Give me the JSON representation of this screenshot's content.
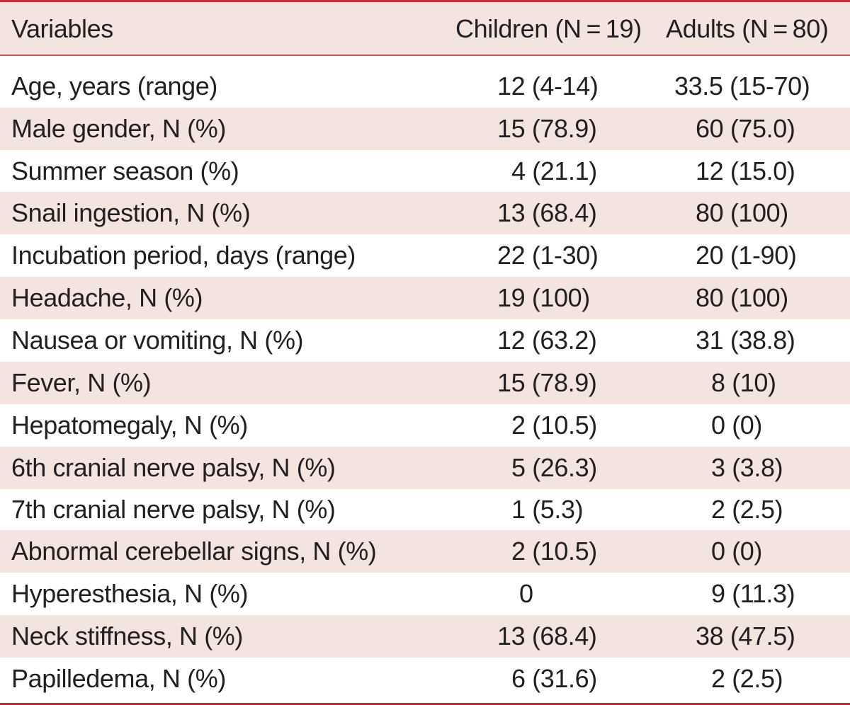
{
  "table": {
    "headers": {
      "variables": "Variables",
      "children": "Children (N = 19)",
      "adults": "Adults (N = 80)"
    },
    "rows": [
      {
        "variable": "Age, years (range)",
        "children": "12 (4-14)",
        "adults": "33.5 (15-70)"
      },
      {
        "variable": "Male gender, N (%)",
        "children": "15 (78.9)",
        "adults": "60 (75.0)"
      },
      {
        "variable": "Summer season (%)",
        "children": "4 (21.1)",
        "adults": "12 (15.0)"
      },
      {
        "variable": "Snail ingestion, N (%)",
        "children": "13 (68.4)",
        "adults": "80 (100)"
      },
      {
        "variable": "Incubation period, days (range)",
        "children": "22 (1-30)",
        "adults": "20 (1-90)"
      },
      {
        "variable": "Headache, N (%)",
        "children": "19 (100)",
        "adults": "80 (100)"
      },
      {
        "variable": "Nausea or vomiting, N (%)",
        "children": "12 (63.2)",
        "adults": "31 (38.8)"
      },
      {
        "variable": "Fever, N (%)",
        "children": "15 (78.9)",
        "adults": "8 (10)"
      },
      {
        "variable": "Hepatomegaly, N (%)",
        "children": "2 (10.5)",
        "adults": "0 (0)"
      },
      {
        "variable": "6th cranial nerve palsy, N (%)",
        "children": "5 (26.3)",
        "adults": "3 (3.8)"
      },
      {
        "variable": "7th cranial nerve palsy, N (%)",
        "children": "1 (5.3)",
        "adults": "2 (2.5)"
      },
      {
        "variable": "Abnormal cerebellar signs, N (%)",
        "children": "2 (10.5)",
        "adults": "0 (0)"
      },
      {
        "variable": "Hyperesthesia, N (%)",
        "children": "0",
        "adults": "9 (11.3)"
      },
      {
        "variable": "Neck stiffness, N (%)",
        "children": "13 (68.4)",
        "adults": "38 (47.5)"
      },
      {
        "variable": "Papilledema, N (%)",
        "children": "6 (31.6)",
        "adults": "2 (2.5)"
      }
    ]
  },
  "colors": {
    "rule": "#b8333d",
    "shade": "#f4e4df",
    "text": "#231f20"
  }
}
